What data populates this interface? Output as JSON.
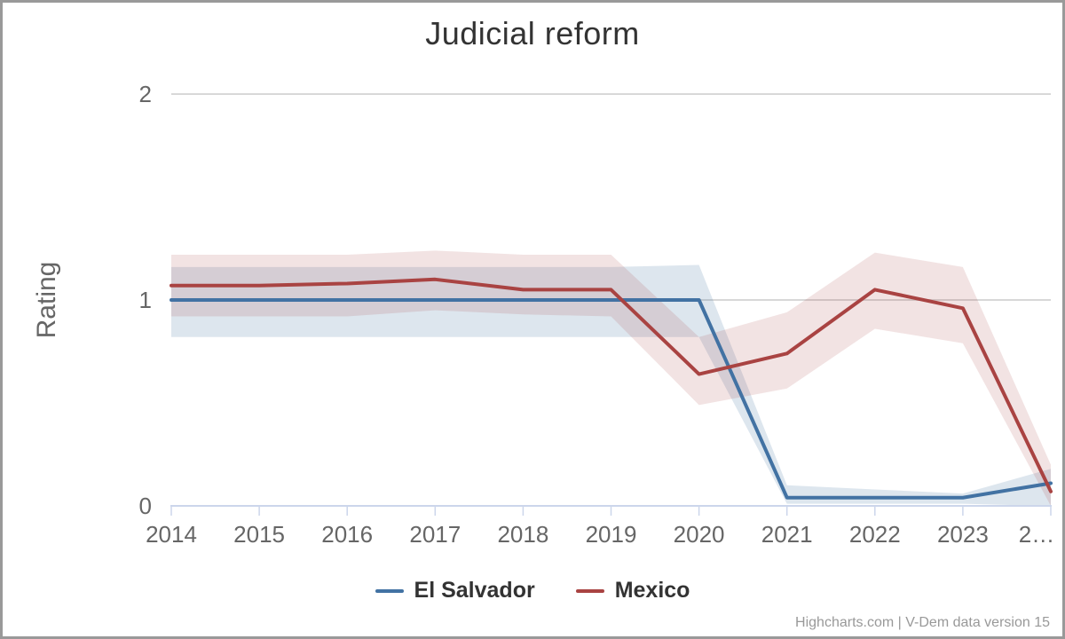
{
  "title": "Judicial reform",
  "credits": "Highcharts.com | V-Dem data version 15",
  "y_axis": {
    "title": "Rating",
    "tick_values": [
      0,
      1,
      2
    ],
    "tick_labels": [
      "0",
      "1",
      "2"
    ],
    "min": 0,
    "max": 2
  },
  "x_axis": {
    "labels": [
      "2014",
      "2015",
      "2016",
      "2017",
      "2018",
      "2019",
      "2020",
      "2021",
      "2022",
      "2023",
      "2…"
    ]
  },
  "chart_data": {
    "type": "line",
    "title": "Judicial reform",
    "ylabel": "Rating",
    "ylim": [
      0,
      2
    ],
    "grid": "horizontal",
    "legend_position": "bottom",
    "x": [
      2014,
      2015,
      2016,
      2017,
      2018,
      2019,
      2020,
      2021,
      2022,
      2023,
      2024
    ],
    "series": [
      {
        "name": "El Salvador",
        "color": "#4272a3",
        "band_opacity": 0.18,
        "values": [
          1.0,
          1.0,
          1.0,
          1.0,
          1.0,
          1.0,
          1.0,
          0.04,
          0.04,
          0.04,
          0.11
        ],
        "range_low": [
          0.82,
          0.82,
          0.82,
          0.82,
          0.82,
          0.82,
          0.82,
          0.01,
          0.01,
          0.01,
          0.0
        ],
        "range_high": [
          1.16,
          1.16,
          1.16,
          1.16,
          1.16,
          1.16,
          1.17,
          0.1,
          0.08,
          0.06,
          0.18
        ]
      },
      {
        "name": "Mexico",
        "color": "#a94342",
        "band_opacity": 0.15,
        "values": [
          1.07,
          1.07,
          1.08,
          1.1,
          1.05,
          1.05,
          0.64,
          0.74,
          1.05,
          0.96,
          0.07
        ],
        "range_low": [
          0.92,
          0.92,
          0.92,
          0.95,
          0.93,
          0.92,
          0.49,
          0.57,
          0.86,
          0.79,
          0.0
        ],
        "range_high": [
          1.22,
          1.22,
          1.22,
          1.24,
          1.22,
          1.22,
          0.82,
          0.94,
          1.23,
          1.16,
          0.2
        ]
      }
    ]
  },
  "colors": {
    "background": "#ffffff",
    "border": "#999999",
    "grid_line": "#d8d8d8",
    "axis_line": "#ccd6eb",
    "title_text": "#333333",
    "axis_text": "#666666",
    "legend_text": "#333333",
    "credits_text": "#999999"
  }
}
